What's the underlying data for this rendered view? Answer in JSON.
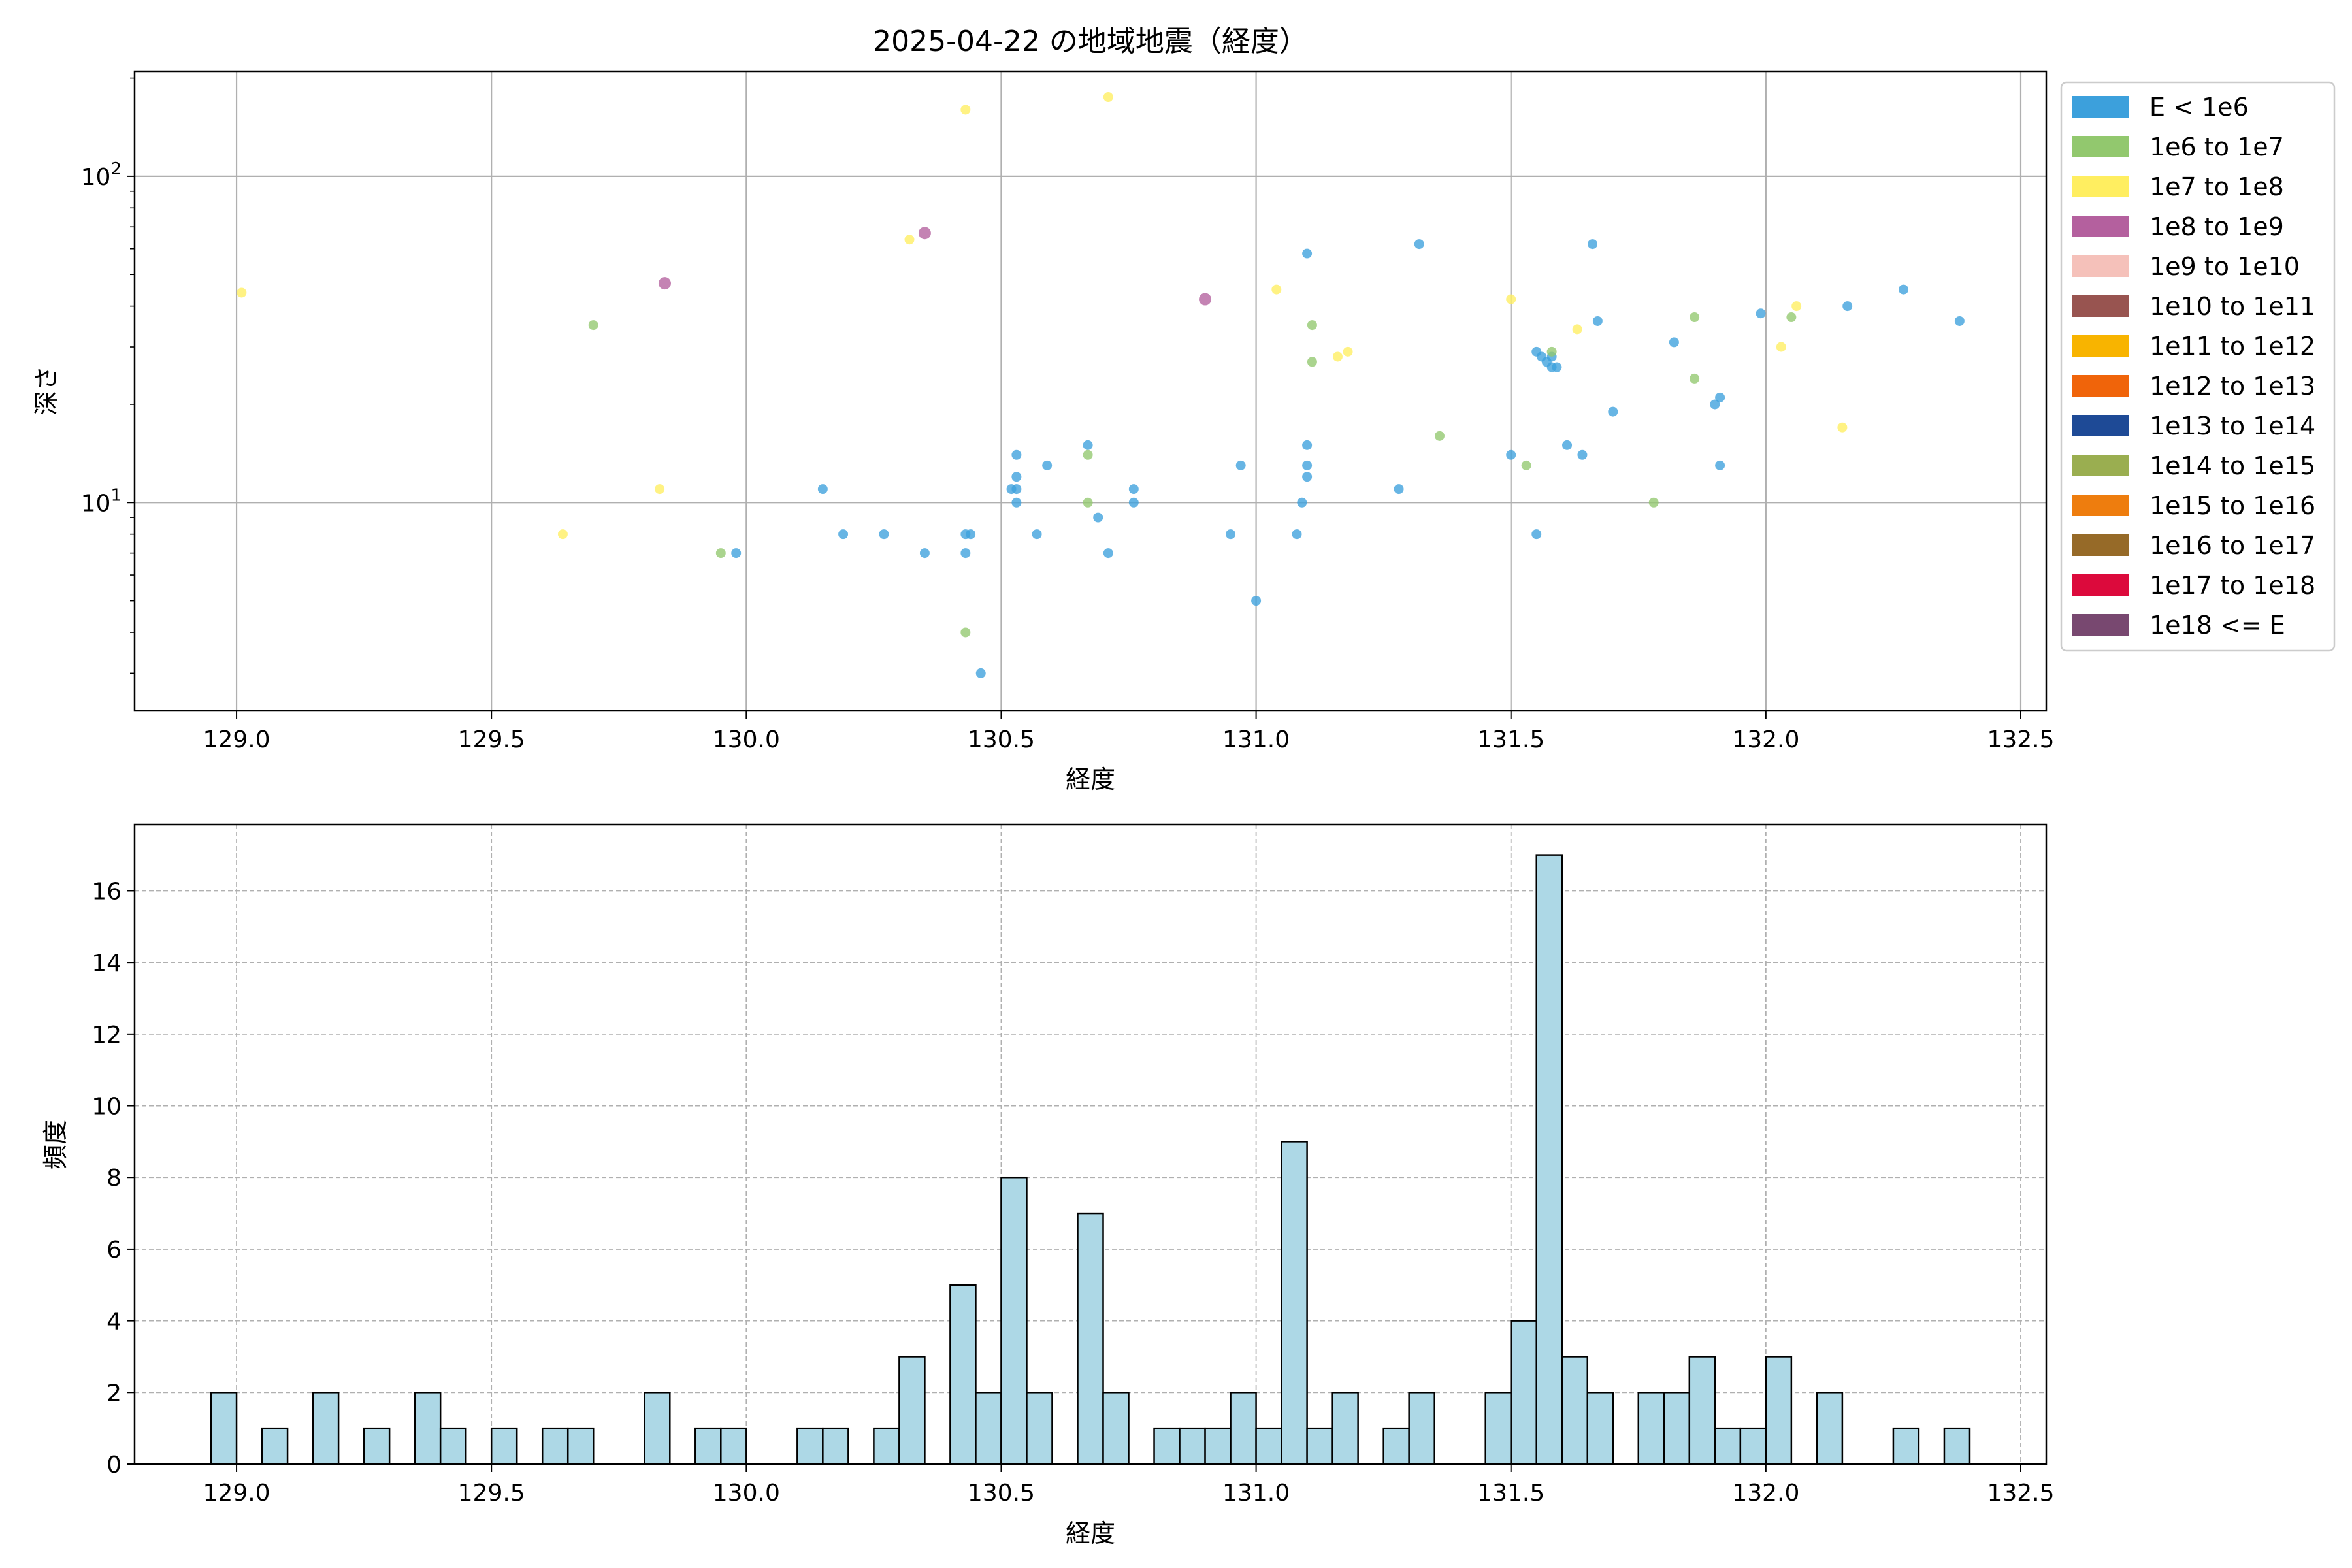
{
  "chart_data": [
    {
      "type": "scatter",
      "title": "2025-04-22 の地域地震（経度）",
      "xlabel": "経度",
      "ylabel": "深さ",
      "xlim": [
        128.8,
        132.55
      ],
      "ylim": [
        210,
        2.3
      ],
      "y_scale": "log",
      "y_inverted": true,
      "grid": true,
      "x_ticks": [
        129.0,
        129.5,
        130.0,
        130.5,
        131.0,
        131.5,
        132.0,
        132.5
      ],
      "x_tick_labels": [
        "129.0",
        "129.5",
        "130.0",
        "130.5",
        "131.0",
        "131.5",
        "132.0",
        "132.5"
      ],
      "y_ticks": [
        10,
        100
      ],
      "y_tick_base": "10",
      "y_tick_exponents": [
        "1",
        "2"
      ],
      "legend": {
        "placement": "outside-right",
        "entries": [
          {
            "label": "E < 1e6",
            "color": "#3ca0dc"
          },
          {
            "label": "1e6 to 1e7",
            "color": "#92c86e"
          },
          {
            "label": "1e7 to 1e8",
            "color": "#ffee60"
          },
          {
            "label": "1e8 to 1e9",
            "color": "#b4609e"
          },
          {
            "label": "1e9 to 1e10",
            "color": "#f5c1ba"
          },
          {
            "label": "1e10 to 1e11",
            "color": "#985450"
          },
          {
            "label": "1e11 to 1e12",
            "color": "#f8b400"
          },
          {
            "label": "1e12 to 1e13",
            "color": "#f0640a"
          },
          {
            "label": "1e13 to 1e14",
            "color": "#1e4a96"
          },
          {
            "label": "1e14 to 1e15",
            "color": "#9aae50"
          },
          {
            "label": "1e15 to 1e16",
            "color": "#ee7d0e"
          },
          {
            "label": "1e16 to 1e17",
            "color": "#966a28"
          },
          {
            "label": "1e17 to 1e18",
            "color": "#dc0a3c"
          },
          {
            "label": "1e18 <= E",
            "color": "#784870"
          }
        ]
      },
      "series": [
        {
          "class": 0,
          "points": [
            [
              130.46,
              3.0
            ],
            [
              130.43,
              7.0
            ],
            [
              130.35,
              7.0
            ],
            [
              129.98,
              7.0
            ],
            [
              130.43,
              8.0
            ],
            [
              130.44,
              8.0
            ],
            [
              130.19,
              8.0
            ],
            [
              130.27,
              8.0
            ],
            [
              130.57,
              8.0
            ],
            [
              130.71,
              7.0
            ],
            [
              130.69,
              9.0
            ],
            [
              130.53,
              10.0
            ],
            [
              130.76,
              10.0
            ],
            [
              130.15,
              11.0
            ],
            [
              130.53,
              11.0
            ],
            [
              130.52,
              11.0
            ],
            [
              130.76,
              11.0
            ],
            [
              130.53,
              12.0
            ],
            [
              130.59,
              13.0
            ],
            [
              130.53,
              14.0
            ],
            [
              130.67,
              15.0
            ],
            [
              131.0,
              5.0
            ],
            [
              130.95,
              8.0
            ],
            [
              131.08,
              8.0
            ],
            [
              131.09,
              10.0
            ],
            [
              131.28,
              11.0
            ],
            [
              131.1,
              12.0
            ],
            [
              131.1,
              13.0
            ],
            [
              130.97,
              13.0
            ],
            [
              131.1,
              15.0
            ],
            [
              131.55,
              8.0
            ],
            [
              131.5,
              14.0
            ],
            [
              131.61,
              15.0
            ],
            [
              131.64,
              14.0
            ],
            [
              131.91,
              13.0
            ],
            [
              131.7,
              19.0
            ],
            [
              131.9,
              20.0
            ],
            [
              131.91,
              21.0
            ],
            [
              131.58,
              26.0
            ],
            [
              131.59,
              26.0
            ],
            [
              131.57,
              27.0
            ],
            [
              131.56,
              28.0
            ],
            [
              131.58,
              28.0
            ],
            [
              131.55,
              29.0
            ],
            [
              131.82,
              31.0
            ],
            [
              131.67,
              36.0
            ],
            [
              131.99,
              38.0
            ],
            [
              132.16,
              40.0
            ],
            [
              132.27,
              45.0
            ],
            [
              132.38,
              36.0
            ],
            [
              131.1,
              58.0
            ],
            [
              131.32,
              62.0
            ],
            [
              131.66,
              62.0
            ]
          ]
        },
        {
          "class": 1,
          "points": [
            [
              130.43,
              4.0
            ],
            [
              129.95,
              7.0
            ],
            [
              130.67,
              10.0
            ],
            [
              130.67,
              14.0
            ],
            [
              131.36,
              16.0
            ],
            [
              131.53,
              13.0
            ],
            [
              131.78,
              10.0
            ],
            [
              131.86,
              24.0
            ],
            [
              131.11,
              27.0
            ],
            [
              131.11,
              35.0
            ],
            [
              129.7,
              35.0
            ],
            [
              131.58,
              29.0
            ],
            [
              131.86,
              37.0
            ],
            [
              132.05,
              37.0
            ]
          ]
        },
        {
          "class": 2,
          "points": [
            [
              129.64,
              8.0
            ],
            [
              129.83,
              11.0
            ],
            [
              129.01,
              44.0
            ],
            [
              131.16,
              28.0
            ],
            [
              131.18,
              29.0
            ],
            [
              131.04,
              45.0
            ],
            [
              131.5,
              42.0
            ],
            [
              131.63,
              34.0
            ],
            [
              132.03,
              30.0
            ],
            [
              132.06,
              40.0
            ],
            [
              132.15,
              17.0
            ],
            [
              130.32,
              64.0
            ],
            [
              130.43,
              160.0
            ],
            [
              130.71,
              175.0
            ]
          ]
        },
        {
          "class": 3,
          "points": [
            [
              129.84,
              47.0
            ],
            [
              130.35,
              67.0
            ],
            [
              130.9,
              42.0
            ]
          ]
        }
      ]
    },
    {
      "type": "bar",
      "subtype": "histogram",
      "xlabel": "経度",
      "ylabel": "頻度",
      "xlim": [
        128.8,
        132.55
      ],
      "ylim": [
        0,
        17.85
      ],
      "grid": true,
      "bar_color": "#add8e6",
      "x_ticks": [
        129.0,
        129.5,
        130.0,
        130.5,
        131.0,
        131.5,
        132.0,
        132.5
      ],
      "x_tick_labels": [
        "129.0",
        "129.5",
        "130.0",
        "130.5",
        "131.0",
        "131.5",
        "132.0",
        "132.5"
      ],
      "y_ticks": [
        0,
        2,
        4,
        6,
        8,
        10,
        12,
        14,
        16
      ],
      "y_tick_labels": [
        "0",
        "2",
        "4",
        "6",
        "8",
        "10",
        "12",
        "14",
        "16"
      ],
      "bin_start": 128.95,
      "bin_width": 0.05,
      "values": [
        2,
        0,
        1,
        0,
        2,
        0,
        1,
        0,
        2,
        1,
        0,
        1,
        0,
        1,
        1,
        0,
        0,
        2,
        0,
        1,
        1,
        0,
        0,
        1,
        1,
        0,
        1,
        3,
        0,
        5,
        2,
        8,
        2,
        0,
        7,
        2,
        0,
        1,
        1,
        1,
        2,
        1,
        9,
        1,
        2,
        0,
        1,
        2,
        0,
        0,
        2,
        4,
        17,
        3,
        2,
        0,
        2,
        2,
        3,
        1,
        1,
        3,
        0,
        2,
        0,
        0,
        1,
        0,
        1
      ]
    }
  ]
}
